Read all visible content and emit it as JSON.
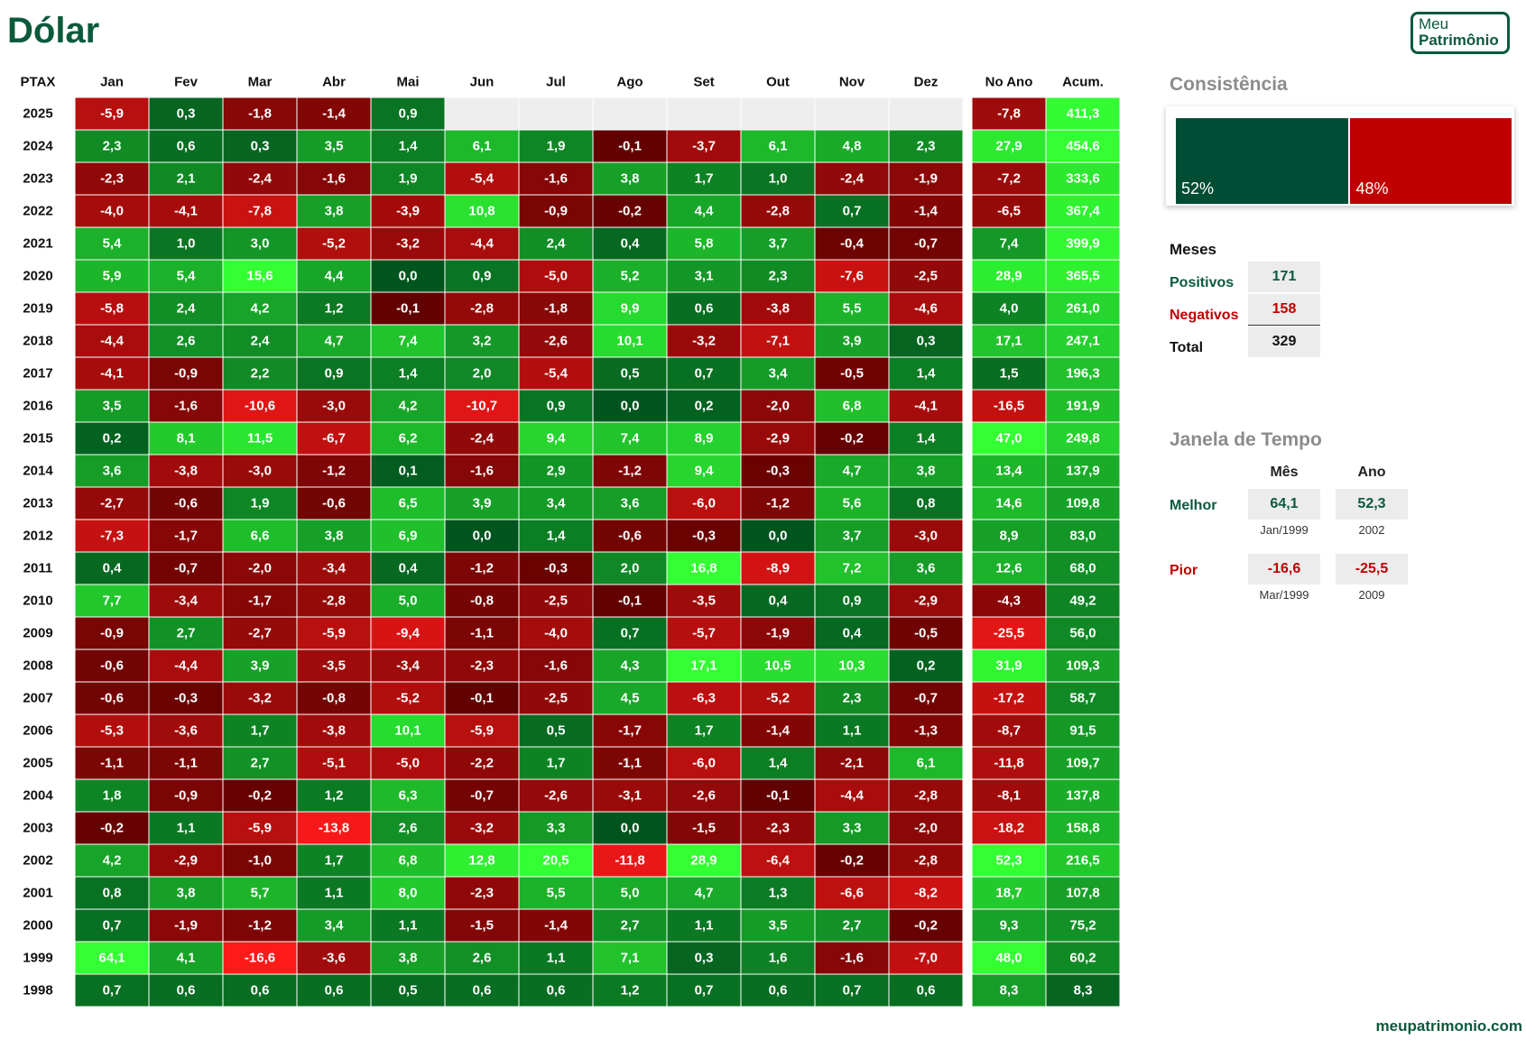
{
  "page": {
    "title": "Dólar",
    "logo_line1": "Meu",
    "logo_line2": "Patrimônio",
    "footer": "meupatrimonio.com"
  },
  "colors": {
    "positive_text": "#0b5a3c",
    "negative_text": "#c00000",
    "pos_dark": "#00551f",
    "pos_light": "#33ff33",
    "neg_dark": "#5a0000",
    "neg_light": "#ff1a1a",
    "empty": "#eeeeee",
    "cons_pos": "#004d35",
    "cons_neg": "#c00000"
  },
  "chart_data": {
    "type": "heatmap",
    "title": "Dólar",
    "corner_label": "PTAX",
    "columns": [
      "Jan",
      "Fev",
      "Mar",
      "Abr",
      "Mai",
      "Jun",
      "Jul",
      "Ago",
      "Set",
      "Out",
      "Nov",
      "Dez"
    ],
    "summary_columns": [
      "No Ano",
      "Acum."
    ],
    "rows": [
      {
        "year": "2025",
        "months": [
          "-5,9",
          "0,3",
          "-1,8",
          "-1,4",
          "0,9",
          null,
          null,
          null,
          null,
          null,
          null,
          null
        ],
        "ano": "-7,8",
        "acum": "411,3"
      },
      {
        "year": "2024",
        "months": [
          "2,3",
          "0,6",
          "0,3",
          "3,5",
          "1,4",
          "6,1",
          "1,9",
          "-0,1",
          "-3,7",
          "6,1",
          "4,8",
          "2,3"
        ],
        "ano": "27,9",
        "acum": "454,6"
      },
      {
        "year": "2023",
        "months": [
          "-2,3",
          "2,1",
          "-2,4",
          "-1,6",
          "1,9",
          "-5,4",
          "-1,6",
          "3,8",
          "1,7",
          "1,0",
          "-2,4",
          "-1,9"
        ],
        "ano": "-7,2",
        "acum": "333,6"
      },
      {
        "year": "2022",
        "months": [
          "-4,0",
          "-4,1",
          "-7,8",
          "3,8",
          "-3,9",
          "10,8",
          "-0,9",
          "-0,2",
          "4,4",
          "-2,8",
          "0,7",
          "-1,4"
        ],
        "ano": "-6,5",
        "acum": "367,4"
      },
      {
        "year": "2021",
        "months": [
          "5,4",
          "1,0",
          "3,0",
          "-5,2",
          "-3,2",
          "-4,4",
          "2,4",
          "0,4",
          "5,8",
          "3,7",
          "-0,4",
          "-0,7"
        ],
        "ano": "7,4",
        "acum": "399,9"
      },
      {
        "year": "2020",
        "months": [
          "5,9",
          "5,4",
          "15,6",
          "4,4",
          "0,0",
          "0,9",
          "-5,0",
          "5,2",
          "3,1",
          "2,3",
          "-7,6",
          "-2,5"
        ],
        "ano": "28,9",
        "acum": "365,5"
      },
      {
        "year": "2019",
        "months": [
          "-5,8",
          "2,4",
          "4,2",
          "1,2",
          "-0,1",
          "-2,8",
          "-1,8",
          "9,9",
          "0,6",
          "-3,8",
          "5,5",
          "-4,6"
        ],
        "ano": "4,0",
        "acum": "261,0"
      },
      {
        "year": "2018",
        "months": [
          "-4,4",
          "2,6",
          "2,4",
          "4,7",
          "7,4",
          "3,2",
          "-2,6",
          "10,1",
          "-3,2",
          "-7,1",
          "3,9",
          "0,3"
        ],
        "ano": "17,1",
        "acum": "247,1"
      },
      {
        "year": "2017",
        "months": [
          "-4,1",
          "-0,9",
          "2,2",
          "0,9",
          "1,4",
          "2,0",
          "-5,4",
          "0,5",
          "0,7",
          "3,4",
          "-0,5",
          "1,4"
        ],
        "ano": "1,5",
        "acum": "196,3"
      },
      {
        "year": "2016",
        "months": [
          "3,5",
          "-1,6",
          "-10,6",
          "-3,0",
          "4,2",
          "-10,7",
          "0,9",
          "0,0",
          "0,2",
          "-2,0",
          "6,8",
          "-4,1"
        ],
        "ano": "-16,5",
        "acum": "191,9"
      },
      {
        "year": "2015",
        "months": [
          "0,2",
          "8,1",
          "11,5",
          "-6,7",
          "6,2",
          "-2,4",
          "9,4",
          "7,4",
          "8,9",
          "-2,9",
          "-0,2",
          "1,4"
        ],
        "ano": "47,0",
        "acum": "249,8"
      },
      {
        "year": "2014",
        "months": [
          "3,6",
          "-3,8",
          "-3,0",
          "-1,2",
          "0,1",
          "-1,6",
          "2,9",
          "-1,2",
          "9,4",
          "-0,3",
          "4,7",
          "3,8"
        ],
        "ano": "13,4",
        "acum": "137,9"
      },
      {
        "year": "2013",
        "months": [
          "-2,7",
          "-0,6",
          "1,9",
          "-0,6",
          "6,5",
          "3,9",
          "3,4",
          "3,6",
          "-6,0",
          "-1,2",
          "5,6",
          "0,8"
        ],
        "ano": "14,6",
        "acum": "109,8"
      },
      {
        "year": "2012",
        "months": [
          "-7,3",
          "-1,7",
          "6,6",
          "3,8",
          "6,9",
          "0,0",
          "1,4",
          "-0,6",
          "-0,3",
          "0,0",
          "3,7",
          "-3,0"
        ],
        "ano": "8,9",
        "acum": "83,0"
      },
      {
        "year": "2011",
        "months": [
          "0,4",
          "-0,7",
          "-2,0",
          "-3,4",
          "0,4",
          "-1,2",
          "-0,3",
          "2,0",
          "16,8",
          "-8,9",
          "7,2",
          "3,6"
        ],
        "ano": "12,6",
        "acum": "68,0"
      },
      {
        "year": "2010",
        "months": [
          "7,7",
          "-3,4",
          "-1,7",
          "-2,8",
          "5,0",
          "-0,8",
          "-2,5",
          "-0,1",
          "-3,5",
          "0,4",
          "0,9",
          "-2,9"
        ],
        "ano": "-4,3",
        "acum": "49,2"
      },
      {
        "year": "2009",
        "months": [
          "-0,9",
          "2,7",
          "-2,7",
          "-5,9",
          "-9,4",
          "-1,1",
          "-4,0",
          "0,7",
          "-5,7",
          "-1,9",
          "0,4",
          "-0,5"
        ],
        "ano": "-25,5",
        "acum": "56,0"
      },
      {
        "year": "2008",
        "months": [
          "-0,6",
          "-4,4",
          "3,9",
          "-3,5",
          "-3,4",
          "-2,3",
          "-1,6",
          "4,3",
          "17,1",
          "10,5",
          "10,3",
          "0,2"
        ],
        "ano": "31,9",
        "acum": "109,3"
      },
      {
        "year": "2007",
        "months": [
          "-0,6",
          "-0,3",
          "-3,2",
          "-0,8",
          "-5,2",
          "-0,1",
          "-2,5",
          "4,5",
          "-6,3",
          "-5,2",
          "2,3",
          "-0,7"
        ],
        "ano": "-17,2",
        "acum": "58,7"
      },
      {
        "year": "2006",
        "months": [
          "-5,3",
          "-3,6",
          "1,7",
          "-3,8",
          "10,1",
          "-5,9",
          "0,5",
          "-1,7",
          "1,7",
          "-1,4",
          "1,1",
          "-1,3"
        ],
        "ano": "-8,7",
        "acum": "91,5"
      },
      {
        "year": "2005",
        "months": [
          "-1,1",
          "-1,1",
          "2,7",
          "-5,1",
          "-5,0",
          "-2,2",
          "1,7",
          "-1,1",
          "-6,0",
          "1,4",
          "-2,1",
          "6,1"
        ],
        "ano": "-11,8",
        "acum": "109,7"
      },
      {
        "year": "2004",
        "months": [
          "1,8",
          "-0,9",
          "-0,2",
          "1,2",
          "6,3",
          "-0,7",
          "-2,6",
          "-3,1",
          "-2,6",
          "-0,1",
          "-4,4",
          "-2,8"
        ],
        "ano": "-8,1",
        "acum": "137,8"
      },
      {
        "year": "2003",
        "months": [
          "-0,2",
          "1,1",
          "-5,9",
          "-13,8",
          "2,6",
          "-3,2",
          "3,3",
          "0,0",
          "-1,5",
          "-2,3",
          "3,3",
          "-2,0"
        ],
        "ano": "-18,2",
        "acum": "158,8"
      },
      {
        "year": "2002",
        "months": [
          "4,2",
          "-2,9",
          "-1,0",
          "1,7",
          "6,8",
          "12,8",
          "20,5",
          "-11,8",
          "28,9",
          "-6,4",
          "-0,2",
          "-2,8"
        ],
        "ano": "52,3",
        "acum": "216,5"
      },
      {
        "year": "2001",
        "months": [
          "0,8",
          "3,8",
          "5,7",
          "1,1",
          "8,0",
          "-2,3",
          "5,5",
          "5,0",
          "4,7",
          "1,3",
          "-6,6",
          "-8,2"
        ],
        "ano": "18,7",
        "acum": "107,8"
      },
      {
        "year": "2000",
        "months": [
          "0,7",
          "-1,9",
          "-1,2",
          "3,4",
          "1,1",
          "-1,5",
          "-1,4",
          "2,7",
          "1,1",
          "3,5",
          "2,7",
          "-0,2"
        ],
        "ano": "9,3",
        "acum": "75,2"
      },
      {
        "year": "1999",
        "months": [
          "64,1",
          "4,1",
          "-16,6",
          "-3,6",
          "3,8",
          "2,6",
          "1,1",
          "7,1",
          "0,3",
          "1,6",
          "-1,6",
          "-7,0"
        ],
        "ano": "48,0",
        "acum": "60,2"
      },
      {
        "year": "1998",
        "months": [
          "0,7",
          "0,6",
          "0,6",
          "0,6",
          "0,5",
          "0,6",
          "0,6",
          "1,2",
          "0,7",
          "0,6",
          "0,7",
          "0,6"
        ],
        "ano": "8,3",
        "acum": "8,3"
      }
    ]
  },
  "consistencia": {
    "title": "Consistência",
    "positive_pct": 52,
    "negative_pct": 48,
    "positive_label": "52%",
    "negative_label": "48%"
  },
  "meses": {
    "title": "Meses",
    "positivos_label": "Positivos",
    "positivos_value": "171",
    "negativos_label": "Negativos",
    "negativos_value": "158",
    "total_label": "Total",
    "total_value": "329"
  },
  "janela": {
    "title": "Janela de Tempo",
    "col_mes": "Mês",
    "col_ano": "Ano",
    "melhor_label": "Melhor",
    "melhor_mes": "64,1",
    "melhor_mes_date": "Jan/1999",
    "melhor_ano": "52,3",
    "melhor_ano_date": "2002",
    "pior_label": "Pior",
    "pior_mes": "-16,6",
    "pior_mes_date": "Mar/1999",
    "pior_ano": "-25,5",
    "pior_ano_date": "2009"
  }
}
